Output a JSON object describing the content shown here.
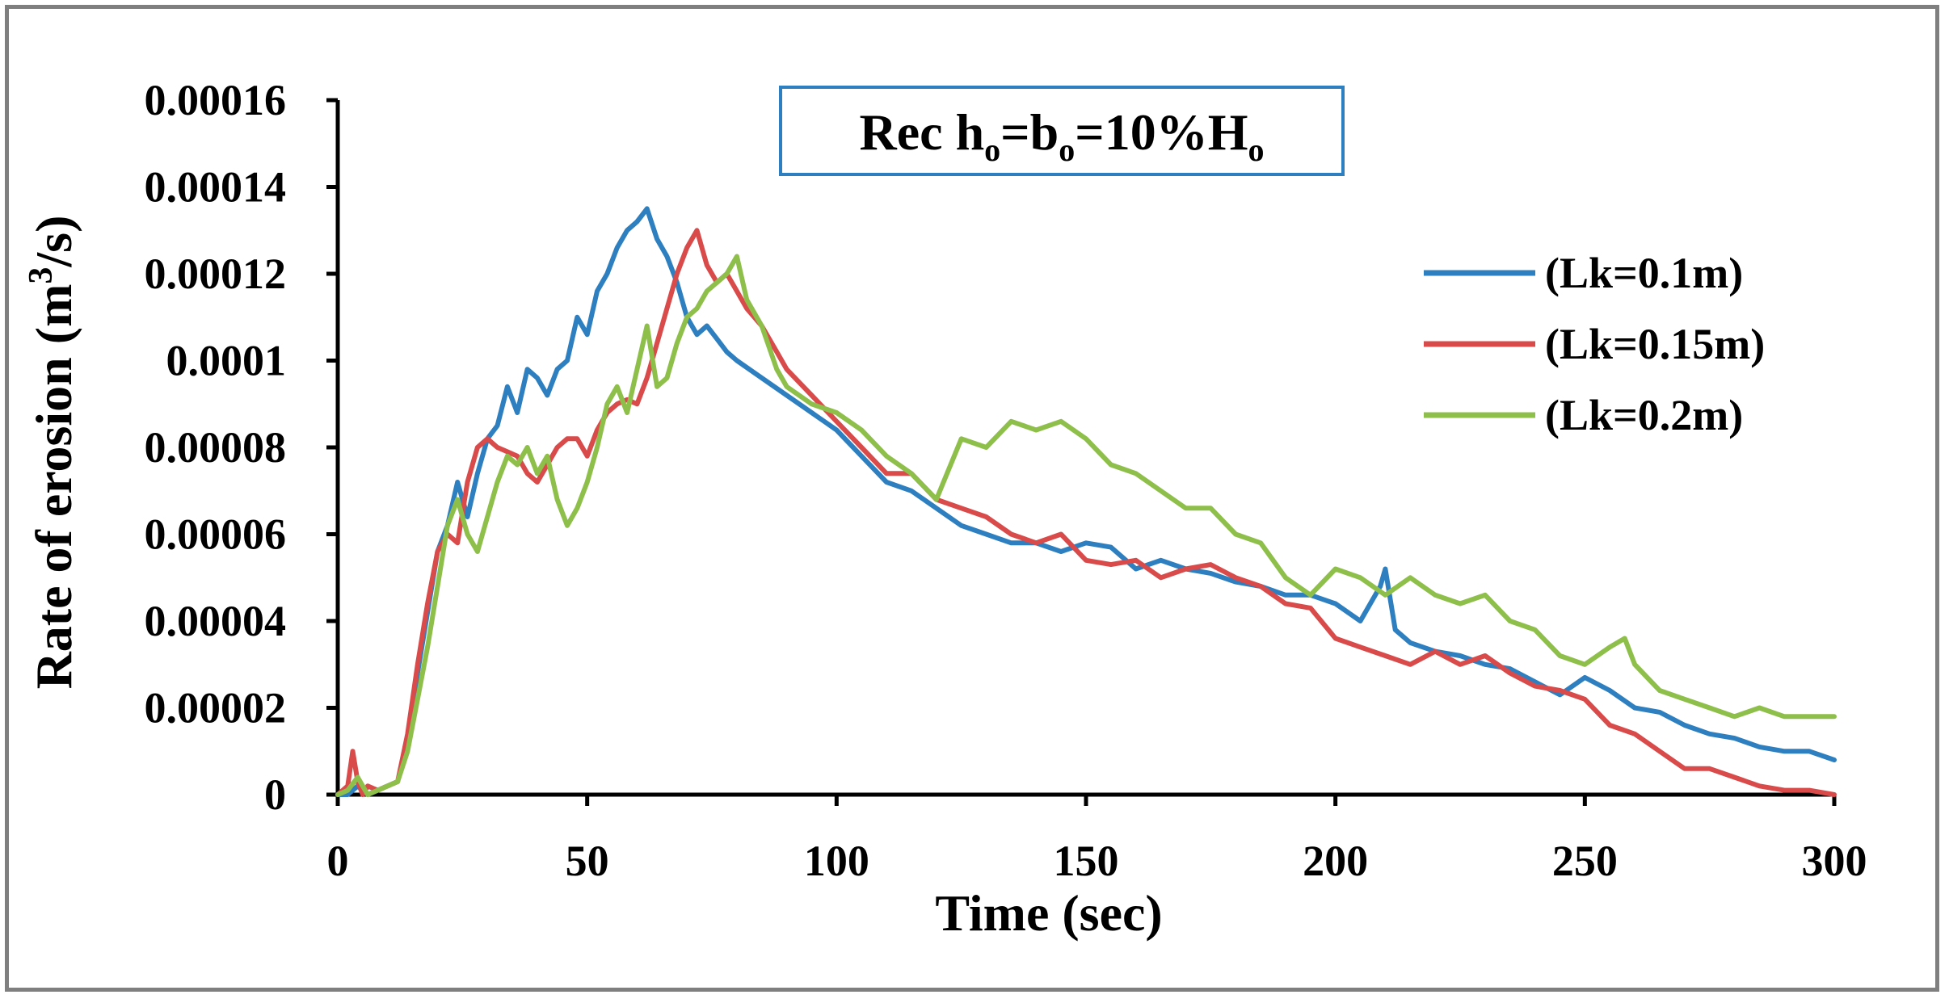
{
  "chart_data": {
    "type": "line",
    "title": "",
    "annotation": {
      "prefix": "Rec h",
      "sub1": "o",
      "mid1": "=b",
      "sub2": "o",
      "mid2": "=10%H",
      "sub3": "o"
    },
    "xlabel": "Time (sec)",
    "ylabel": {
      "pre": "Rate of erosion (m",
      "sup": "3",
      "post": "/s)"
    },
    "xlim": [
      0,
      300
    ],
    "ylim": [
      0,
      0.00016
    ],
    "xticks": [
      0,
      50,
      100,
      150,
      200,
      250,
      300
    ],
    "xtick_labels": [
      "0",
      "50",
      "100",
      "150",
      "200",
      "250",
      "300"
    ],
    "yticks": [
      0,
      2e-05,
      4e-05,
      6e-05,
      8e-05,
      0.0001,
      0.00012,
      0.00014,
      0.00016
    ],
    "ytick_labels": [
      "0",
      "0.00002",
      "0.00004",
      "0.00006",
      "0.00008",
      "0.0001",
      "0.00012",
      "0.00014",
      "0.00016"
    ],
    "grid": false,
    "legend_position": "right",
    "series": [
      {
        "name": "(Lk=0.1m)",
        "color": "#2e7fbf",
        "x": [
          0,
          2,
          4,
          6,
          8,
          10,
          12,
          14,
          16,
          18,
          20,
          22,
          24,
          26,
          28,
          30,
          32,
          34,
          36,
          38,
          40,
          42,
          44,
          46,
          48,
          50,
          52,
          54,
          56,
          58,
          60,
          62,
          64,
          66,
          68,
          70,
          72,
          74,
          76,
          78,
          80,
          85,
          90,
          95,
          100,
          105,
          110,
          115,
          120,
          125,
          130,
          135,
          140,
          145,
          150,
          155,
          160,
          165,
          170,
          175,
          180,
          185,
          190,
          195,
          200,
          205,
          209,
          210,
          212,
          215,
          220,
          225,
          230,
          235,
          240,
          245,
          250,
          255,
          260,
          265,
          270,
          275,
          280,
          285,
          290,
          295,
          300
        ],
        "y": [
          0,
          0,
          2e-06,
          0,
          1e-06,
          2e-06,
          3e-06,
          1.2e-05,
          2.8e-05,
          4.2e-05,
          5.6e-05,
          6.2e-05,
          7.2e-05,
          6.4e-05,
          7.4e-05,
          8.2e-05,
          8.5e-05,
          9.4e-05,
          8.8e-05,
          9.8e-05,
          9.6e-05,
          9.2e-05,
          9.8e-05,
          0.0001,
          0.00011,
          0.000106,
          0.000116,
          0.00012,
          0.000126,
          0.00013,
          0.000132,
          0.000135,
          0.000128,
          0.000124,
          0.000118,
          0.00011,
          0.000106,
          0.000108,
          0.000105,
          0.000102,
          0.0001,
          9.6e-05,
          9.2e-05,
          8.8e-05,
          8.4e-05,
          7.8e-05,
          7.2e-05,
          7e-05,
          6.6e-05,
          6.2e-05,
          6e-05,
          5.8e-05,
          5.8e-05,
          5.6e-05,
          5.8e-05,
          5.7e-05,
          5.2e-05,
          5.4e-05,
          5.2e-05,
          5.1e-05,
          4.9e-05,
          4.8e-05,
          4.6e-05,
          4.6e-05,
          4.4e-05,
          4e-05,
          4.8e-05,
          5.2e-05,
          3.8e-05,
          3.5e-05,
          3.3e-05,
          3.2e-05,
          3e-05,
          2.9e-05,
          2.6e-05,
          2.3e-05,
          2.7e-05,
          2.4e-05,
          2e-05,
          1.9e-05,
          1.6e-05,
          1.4e-05,
          1.3e-05,
          1.1e-05,
          1e-05,
          1e-05,
          8e-06
        ]
      },
      {
        "name": "(Lk=0.15m)",
        "color": "#d94a4a",
        "x": [
          0,
          2,
          3,
          4,
          5,
          6,
          8,
          10,
          12,
          14,
          16,
          18,
          20,
          22,
          24,
          26,
          28,
          30,
          32,
          34,
          36,
          38,
          40,
          42,
          44,
          46,
          48,
          50,
          52,
          54,
          56,
          58,
          60,
          62,
          64,
          66,
          68,
          70,
          72,
          74,
          76,
          78,
          80,
          82,
          85,
          88,
          90,
          95,
          100,
          105,
          110,
          115,
          120,
          125,
          130,
          135,
          140,
          145,
          150,
          155,
          160,
          165,
          170,
          175,
          180,
          185,
          190,
          195,
          200,
          205,
          210,
          215,
          220,
          225,
          230,
          235,
          240,
          245,
          250,
          255,
          260,
          265,
          270,
          275,
          280,
          285,
          290,
          295,
          300
        ],
        "y": [
          0,
          2e-06,
          1e-05,
          3e-06,
          0,
          2e-06,
          1e-06,
          2e-06,
          3e-06,
          1.4e-05,
          3e-05,
          4.4e-05,
          5.6e-05,
          6e-05,
          5.8e-05,
          7.2e-05,
          8e-05,
          8.2e-05,
          8e-05,
          7.9e-05,
          7.8e-05,
          7.4e-05,
          7.2e-05,
          7.6e-05,
          8e-05,
          8.2e-05,
          8.2e-05,
          7.8e-05,
          8.4e-05,
          8.8e-05,
          9e-05,
          9.1e-05,
          9e-05,
          9.6e-05,
          0.000104,
          0.000112,
          0.00012,
          0.000126,
          0.00013,
          0.000122,
          0.000118,
          0.00012,
          0.000116,
          0.000112,
          0.000108,
          0.000102,
          9.8e-05,
          9.2e-05,
          8.6e-05,
          8e-05,
          7.4e-05,
          7.4e-05,
          6.8e-05,
          6.6e-05,
          6.4e-05,
          6e-05,
          5.8e-05,
          6e-05,
          5.4e-05,
          5.3e-05,
          5.4e-05,
          5e-05,
          5.2e-05,
          5.3e-05,
          5e-05,
          4.8e-05,
          4.4e-05,
          4.3e-05,
          3.6e-05,
          3.4e-05,
          3.2e-05,
          3e-05,
          3.3e-05,
          3e-05,
          3.2e-05,
          2.8e-05,
          2.5e-05,
          2.4e-05,
          2.2e-05,
          1.6e-05,
          1.4e-05,
          1e-05,
          6e-06,
          6e-06,
          4e-06,
          2e-06,
          1e-06,
          1e-06,
          0
        ]
      },
      {
        "name": "(Lk=0.2m)",
        "color": "#8ebf4a",
        "x": [
          0,
          2,
          4,
          6,
          8,
          10,
          12,
          14,
          16,
          18,
          20,
          22,
          24,
          26,
          28,
          30,
          32,
          34,
          36,
          38,
          40,
          42,
          44,
          46,
          48,
          50,
          52,
          54,
          56,
          58,
          60,
          62,
          64,
          66,
          68,
          70,
          72,
          74,
          76,
          78,
          80,
          82,
          85,
          88,
          90,
          95,
          100,
          105,
          110,
          115,
          120,
          125,
          130,
          135,
          140,
          145,
          150,
          155,
          160,
          165,
          170,
          175,
          180,
          185,
          190,
          195,
          200,
          205,
          210,
          215,
          220,
          225,
          230,
          235,
          240,
          245,
          250,
          255,
          258,
          260,
          265,
          270,
          275,
          280,
          285,
          290,
          295,
          300
        ],
        "y": [
          0,
          1e-06,
          4e-06,
          0,
          1e-06,
          2e-06,
          3e-06,
          1e-05,
          2.2e-05,
          3.4e-05,
          4.8e-05,
          6.2e-05,
          6.8e-05,
          6e-05,
          5.6e-05,
          6.4e-05,
          7.2e-05,
          7.8e-05,
          7.6e-05,
          8e-05,
          7.4e-05,
          7.8e-05,
          6.8e-05,
          6.2e-05,
          6.6e-05,
          7.2e-05,
          8e-05,
          9e-05,
          9.4e-05,
          8.8e-05,
          9.8e-05,
          0.000108,
          9.4e-05,
          9.6e-05,
          0.000104,
          0.00011,
          0.000112,
          0.000116,
          0.000118,
          0.00012,
          0.000124,
          0.000114,
          0.000108,
          9.8e-05,
          9.4e-05,
          9e-05,
          8.8e-05,
          8.4e-05,
          7.8e-05,
          7.4e-05,
          6.8e-05,
          8.2e-05,
          8e-05,
          8.6e-05,
          8.4e-05,
          8.6e-05,
          8.2e-05,
          7.6e-05,
          7.4e-05,
          7e-05,
          6.6e-05,
          6.6e-05,
          6e-05,
          5.8e-05,
          5e-05,
          4.6e-05,
          5.2e-05,
          5e-05,
          4.6e-05,
          5e-05,
          4.6e-05,
          4.4e-05,
          4.6e-05,
          4e-05,
          3.8e-05,
          3.2e-05,
          3e-05,
          3.4e-05,
          3.6e-05,
          3e-05,
          2.4e-05,
          2.2e-05,
          2e-05,
          1.8e-05,
          2e-05,
          1.8e-05,
          1.8e-05,
          1.8e-05
        ]
      }
    ]
  }
}
